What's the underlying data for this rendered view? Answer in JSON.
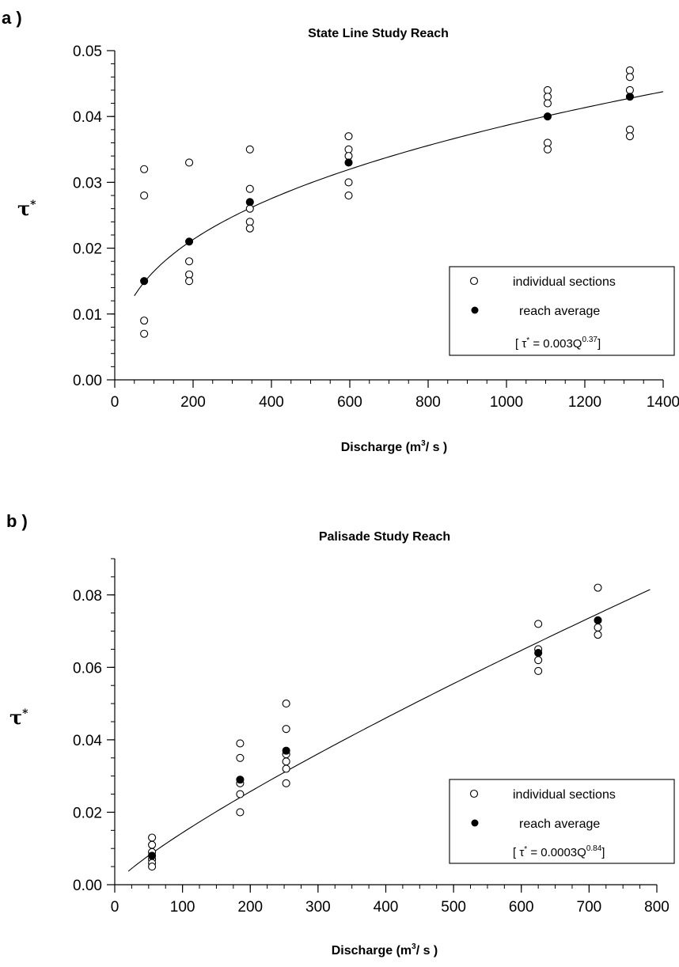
{
  "panels": [
    {
      "letter": "a )",
      "title": "State  Line  Study  Reach",
      "ylabel": "τ*",
      "xlabel_main": "Discharge   (m",
      "xlabel_sup": "3",
      "xlabel_end": "/ s )",
      "legend": {
        "individual": "individual sections",
        "average": "reach average",
        "eq_prefix": "[ τ",
        "eq_star": "*",
        "eq_body": " = 0.003Q",
        "eq_exp": "0.37",
        "eq_suffix": "]"
      }
    },
    {
      "letter": "b )",
      "title": "Palisade  Study  Reach",
      "ylabel": "τ*",
      "xlabel_main": "Discharge   (m",
      "xlabel_sup": "3",
      "xlabel_end": "/ s )",
      "legend": {
        "individual": "individual sections",
        "average": "reach average",
        "eq_prefix": "[ τ",
        "eq_star": "*",
        "eq_body": " = 0.0003Q",
        "eq_exp": "0.84",
        "eq_suffix": "]"
      }
    }
  ],
  "chart_data": [
    {
      "type": "scatter",
      "title": "State  Line  Study  Reach",
      "xlabel": "Discharge (m3/ s )",
      "ylabel": "τ*",
      "xlim": [
        0,
        1400
      ],
      "ylim": [
        0,
        0.05
      ],
      "xticks": [
        0,
        200,
        400,
        600,
        800,
        1000,
        1200,
        1400
      ],
      "xtick_labels": [
        "0",
        "200",
        "400",
        "600",
        "800",
        "1000",
        "1200",
        "1400"
      ],
      "yticks": [
        0,
        0.01,
        0.02,
        0.03,
        0.04,
        0.05
      ],
      "ytick_labels": [
        "0.00",
        "0.01",
        "0.02",
        "0.03",
        "0.04",
        "0.05"
      ],
      "series": [
        {
          "name": "individual sections",
          "marker": "open-circle",
          "points": [
            [
              75,
              0.032
            ],
            [
              75,
              0.028
            ],
            [
              75,
              0.009
            ],
            [
              75,
              0.007
            ],
            [
              190,
              0.033
            ],
            [
              190,
              0.018
            ],
            [
              190,
              0.016
            ],
            [
              190,
              0.015
            ],
            [
              345,
              0.035
            ],
            [
              345,
              0.029
            ],
            [
              345,
              0.026
            ],
            [
              345,
              0.024
            ],
            [
              345,
              0.023
            ],
            [
              597,
              0.037
            ],
            [
              597,
              0.035
            ],
            [
              597,
              0.034
            ],
            [
              597,
              0.03
            ],
            [
              597,
              0.028
            ],
            [
              1105,
              0.044
            ],
            [
              1105,
              0.043
            ],
            [
              1105,
              0.042
            ],
            [
              1105,
              0.036
            ],
            [
              1105,
              0.035
            ],
            [
              1315,
              0.047
            ],
            [
              1315,
              0.046
            ],
            [
              1315,
              0.044
            ],
            [
              1315,
              0.038
            ],
            [
              1315,
              0.037
            ]
          ]
        },
        {
          "name": "reach average",
          "marker": "filled-circle",
          "points": [
            [
              75,
              0.015
            ],
            [
              190,
              0.021
            ],
            [
              345,
              0.027
            ],
            [
              597,
              0.033
            ],
            [
              1105,
              0.04
            ],
            [
              1315,
              0.043
            ]
          ]
        }
      ],
      "fit": {
        "equation": "τ* = 0.003Q^0.37",
        "a": 0.003,
        "b": 0.37,
        "x_range": [
          50,
          1400
        ]
      },
      "legend_position": "lower-right",
      "grid": false
    },
    {
      "type": "scatter",
      "title": "Palisade  Study  Reach",
      "xlabel": "Discharge (m3/ s )",
      "ylabel": "τ*",
      "xlim": [
        0,
        800
      ],
      "ylim": [
        0,
        0.09
      ],
      "xticks": [
        0,
        100,
        200,
        300,
        400,
        500,
        600,
        700,
        800
      ],
      "xtick_labels": [
        "0",
        "100",
        "200",
        "300",
        "400",
        "500",
        "600",
        "700",
        "800"
      ],
      "yticks": [
        0,
        0.02,
        0.04,
        0.06,
        0.08
      ],
      "ytick_labels": [
        "0.00",
        "0.02",
        "0.04",
        "0.06",
        "0.08"
      ],
      "series": [
        {
          "name": "individual sections",
          "marker": "open-circle",
          "points": [
            [
              55,
              0.013
            ],
            [
              55,
              0.011
            ],
            [
              55,
              0.009
            ],
            [
              55,
              0.007
            ],
            [
              55,
              0.006
            ],
            [
              55,
              0.005
            ],
            [
              185,
              0.039
            ],
            [
              185,
              0.035
            ],
            [
              185,
              0.028
            ],
            [
              185,
              0.025
            ],
            [
              185,
              0.02
            ],
            [
              253,
              0.05
            ],
            [
              253,
              0.043
            ],
            [
              253,
              0.036
            ],
            [
              253,
              0.034
            ],
            [
              253,
              0.032
            ],
            [
              253,
              0.028
            ],
            [
              625,
              0.072
            ],
            [
              625,
              0.065
            ],
            [
              625,
              0.062
            ],
            [
              625,
              0.059
            ],
            [
              713,
              0.082
            ],
            [
              713,
              0.071
            ],
            [
              713,
              0.069
            ]
          ]
        },
        {
          "name": "reach average",
          "marker": "filled-circle",
          "points": [
            [
              55,
              0.008
            ],
            [
              185,
              0.029
            ],
            [
              253,
              0.037
            ],
            [
              625,
              0.064
            ],
            [
              713,
              0.073
            ]
          ]
        }
      ],
      "fit": {
        "equation": "τ* = 0.0003Q^0.84",
        "a": 0.0003,
        "b": 0.84,
        "x_range": [
          20,
          790
        ]
      },
      "legend_position": "lower-right",
      "grid": false
    }
  ]
}
